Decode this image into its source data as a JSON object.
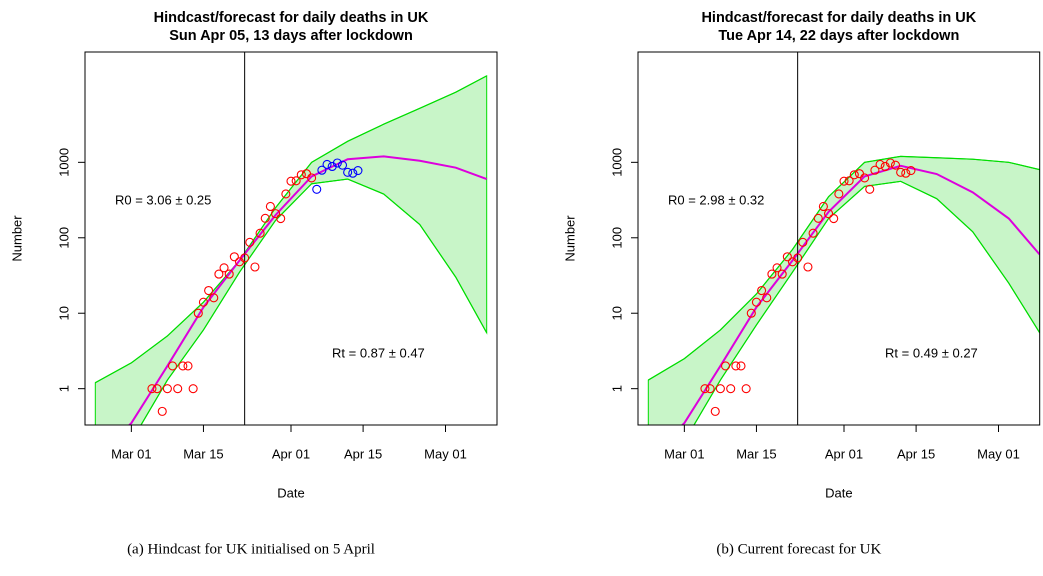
{
  "chart_data": [
    {
      "type": "line",
      "title": "Hindcast/forecast for daily deaths in UK",
      "subtitle": "Sun Apr 05, 13 days after lockdown",
      "xlabel": "Date",
      "ylabel": "Number",
      "ylog": true,
      "xlim": [
        "Feb 21",
        "May 11"
      ],
      "xticks": [
        "Mar 01",
        "Mar 15",
        "Apr 01",
        "Apr 15",
        "May 01"
      ],
      "ylim": [
        0.33,
        29000
      ],
      "yticks": [
        1,
        10,
        100,
        1000
      ],
      "vline": "Mar 23",
      "annotations": [
        "R0 = 3.06 ± 0.25",
        "Rt = 0.87 ± 0.47"
      ],
      "band": {
        "color": "#00dd00",
        "fill": "#c8f5c8",
        "x": [
          "Feb 23",
          "Mar 01",
          "Mar 08",
          "Mar 15",
          "Mar 22",
          "Mar 29",
          "Apr 05",
          "Apr 12",
          "Apr 19",
          "Apr 26",
          "May 03",
          "May 09"
        ],
        "upper": [
          1.2,
          2.2,
          5,
          14,
          50,
          250,
          1000,
          1900,
          3200,
          5200,
          8500,
          14000
        ],
        "lower": [
          0.03,
          0.2,
          1.3,
          6,
          35,
          170,
          520,
          600,
          380,
          150,
          30,
          5.5
        ]
      },
      "median": {
        "color": "#dd00dd",
        "x": [
          "Feb 29",
          "Mar 01",
          "Mar 08",
          "Mar 15",
          "Mar 22",
          "Mar 29",
          "Apr 05",
          "Apr 12",
          "Apr 19",
          "Apr 26",
          "May 03",
          "May 09"
        ],
        "values": [
          0.3,
          0.35,
          2,
          12,
          50,
          200,
          650,
          1100,
          1200,
          1050,
          850,
          600
        ]
      },
      "observed": {
        "color": "#ff0000",
        "x": [
          "Mar 05",
          "Mar 06",
          "Mar 07",
          "Mar 08",
          "Mar 09",
          "Mar 10",
          "Mar 11",
          "Mar 12",
          "Mar 13",
          "Mar 14",
          "Mar 15",
          "Mar 16",
          "Mar 17",
          "Mar 18",
          "Mar 19",
          "Mar 20",
          "Mar 21",
          "Mar 22",
          "Mar 23",
          "Mar 24",
          "Mar 25",
          "Mar 26",
          "Mar 27",
          "Mar 28",
          "Mar 29",
          "Mar 30",
          "Mar 31",
          "Apr 01",
          "Apr 02",
          "Apr 03",
          "Apr 04",
          "Apr 05"
        ],
        "values": [
          1,
          1,
          0.5,
          1,
          2,
          1,
          2,
          2,
          1,
          10,
          14,
          20,
          16,
          33,
          40,
          33,
          56,
          48,
          54,
          87,
          41,
          115,
          181,
          260,
          209,
          180,
          381,
          563,
          569,
          684,
          708,
          621
        ]
      },
      "future": {
        "color": "#0000ff",
        "x": [
          "Apr 06",
          "Apr 07",
          "Apr 08",
          "Apr 09",
          "Apr 10",
          "Apr 11",
          "Apr 12",
          "Apr 13",
          "Apr 14"
        ],
        "values": [
          439,
          786,
          938,
          881,
          980,
          917,
          737,
          717,
          778
        ]
      },
      "caption": "(a) Hindcast for UK initialised on 5 April"
    },
    {
      "type": "line",
      "title": "Hindcast/forecast for daily deaths in UK",
      "subtitle": "Tue Apr 14, 22 days after lockdown",
      "xlabel": "Date",
      "ylabel": "Number",
      "ylog": true,
      "xlim": [
        "Feb 21",
        "May 09"
      ],
      "xticks": [
        "Mar 01",
        "Mar 15",
        "Apr 01",
        "Apr 15",
        "May 01"
      ],
      "ylim": [
        0.33,
        29000
      ],
      "yticks": [
        1,
        10,
        100,
        1000
      ],
      "vline": "Mar 23",
      "annotations": [
        "R0 = 2.98 ± 0.32",
        "Rt = 0.49 ± 0.27"
      ],
      "band": {
        "color": "#00dd00",
        "fill": "#c8f5c8",
        "x": [
          "Feb 23",
          "Mar 01",
          "Mar 08",
          "Mar 15",
          "Mar 22",
          "Mar 29",
          "Apr 05",
          "Apr 12",
          "Apr 19",
          "Apr 26",
          "May 03",
          "May 09"
        ],
        "upper": [
          1.3,
          2.5,
          6,
          18,
          70,
          350,
          1000,
          1200,
          1150,
          1100,
          1000,
          800
        ],
        "lower": [
          0.03,
          0.2,
          1.3,
          7,
          35,
          180,
          480,
          560,
          330,
          120,
          25,
          5.5
        ]
      },
      "median": {
        "color": "#dd00dd",
        "x": [
          "Feb 29",
          "Mar 01",
          "Mar 08",
          "Mar 15",
          "Mar 22",
          "Mar 29",
          "Apr 05",
          "Apr 12",
          "Apr 19",
          "Apr 26",
          "May 03",
          "May 09"
        ],
        "values": [
          0.3,
          0.35,
          2,
          12,
          50,
          220,
          650,
          900,
          700,
          400,
          180,
          60
        ]
      },
      "observed": {
        "color": "#ff0000",
        "x": [
          "Mar 05",
          "Mar 06",
          "Mar 07",
          "Mar 08",
          "Mar 09",
          "Mar 10",
          "Mar 11",
          "Mar 12",
          "Mar 13",
          "Mar 14",
          "Mar 15",
          "Mar 16",
          "Mar 17",
          "Mar 18",
          "Mar 19",
          "Mar 20",
          "Mar 21",
          "Mar 22",
          "Mar 23",
          "Mar 24",
          "Mar 25",
          "Mar 26",
          "Mar 27",
          "Mar 28",
          "Mar 29",
          "Mar 30",
          "Mar 31",
          "Apr 01",
          "Apr 02",
          "Apr 03",
          "Apr 04",
          "Apr 05",
          "Apr 06",
          "Apr 07",
          "Apr 08",
          "Apr 09",
          "Apr 10",
          "Apr 11",
          "Apr 12",
          "Apr 13",
          "Apr 14"
        ],
        "values": [
          1,
          1,
          0.5,
          1,
          2,
          1,
          2,
          2,
          1,
          10,
          14,
          20,
          16,
          33,
          40,
          33,
          56,
          48,
          54,
          87,
          41,
          115,
          181,
          260,
          209,
          180,
          381,
          563,
          569,
          684,
          708,
          621,
          439,
          786,
          938,
          881,
          980,
          917,
          737,
          717,
          778
        ]
      },
      "caption": "(b) Current forecast for UK"
    }
  ]
}
